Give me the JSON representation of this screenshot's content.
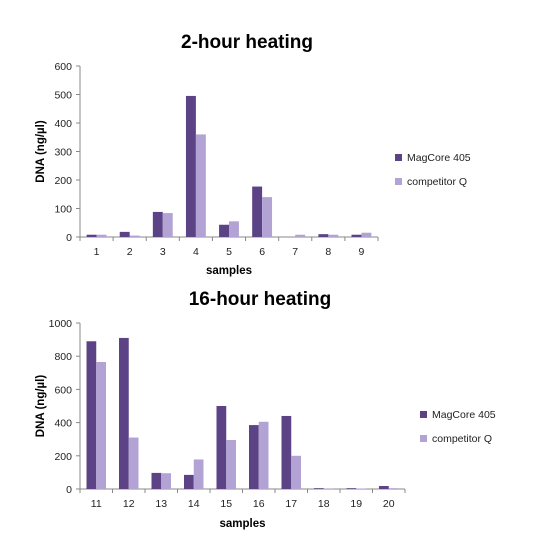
{
  "chart_data": [
    {
      "type": "bar",
      "title": "2-hour heating",
      "xlabel": "samples",
      "ylabel": "DNA (ng/µl)",
      "ylim": [
        0,
        600
      ],
      "yticks": [
        0,
        100,
        200,
        300,
        400,
        500,
        600
      ],
      "grid": false,
      "legend_position": "right",
      "categories": [
        "1",
        "2",
        "3",
        "4",
        "5",
        "6",
        "7",
        "8",
        "9"
      ],
      "series": [
        {
          "name": "MagCore 405",
          "color": "#5c4385",
          "values": [
            8,
            18,
            88,
            495,
            43,
            177,
            0,
            10,
            8
          ]
        },
        {
          "name": "competitor Q",
          "color": "#b3a2d4",
          "values": [
            8,
            5,
            84,
            360,
            55,
            140,
            8,
            8,
            15
          ]
        }
      ]
    },
    {
      "type": "bar",
      "title": "16-hour heating",
      "xlabel": "samples",
      "ylabel": "DNA (ng/µl)",
      "ylim": [
        0,
        1000
      ],
      "yticks": [
        0,
        200,
        400,
        600,
        800,
        1000
      ],
      "grid": false,
      "legend_position": "right",
      "categories": [
        "11",
        "12",
        "13",
        "14",
        "15",
        "16",
        "17",
        "18",
        "19",
        "20"
      ],
      "series": [
        {
          "name": "MagCore 405",
          "color": "#5c4385",
          "values": [
            890,
            910,
            97,
            85,
            500,
            385,
            440,
            5,
            5,
            18
          ]
        },
        {
          "name": "competitor Q",
          "color": "#b3a2d4",
          "values": [
            765,
            310,
            95,
            178,
            295,
            405,
            200,
            2,
            3,
            5
          ]
        }
      ]
    }
  ]
}
